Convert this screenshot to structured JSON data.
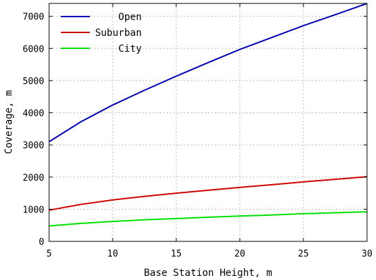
{
  "chart_data": {
    "type": "line",
    "xlabel": "Base Station Height, m",
    "ylabel": "Coverage, m",
    "xlim": [
      5,
      30
    ],
    "ylim": [
      0,
      7400
    ],
    "xticks": [
      5,
      10,
      15,
      20,
      25,
      30
    ],
    "yticks": [
      0,
      1000,
      2000,
      3000,
      4000,
      5000,
      6000,
      7000
    ],
    "grid": true,
    "legend_position": "top-left",
    "x": [
      5,
      7.5,
      10,
      12.5,
      15,
      17.5,
      20,
      22.5,
      25,
      27.5,
      30
    ],
    "series": [
      {
        "name": "Open",
        "color": "#0000b0",
        "values": [
          3100,
          3720,
          4240,
          4700,
          5140,
          5560,
          5970,
          6340,
          6710,
          7050,
          7400
        ]
      },
      {
        "name": "Suburban",
        "color": "#d00000",
        "values": [
          970,
          1150,
          1290,
          1400,
          1500,
          1590,
          1680,
          1760,
          1850,
          1930,
          2010
        ]
      },
      {
        "name": "City",
        "color": "#00e000",
        "values": [
          480,
          560,
          620,
          670,
          710,
          750,
          790,
          820,
          860,
          890,
          920
        ]
      }
    ]
  }
}
